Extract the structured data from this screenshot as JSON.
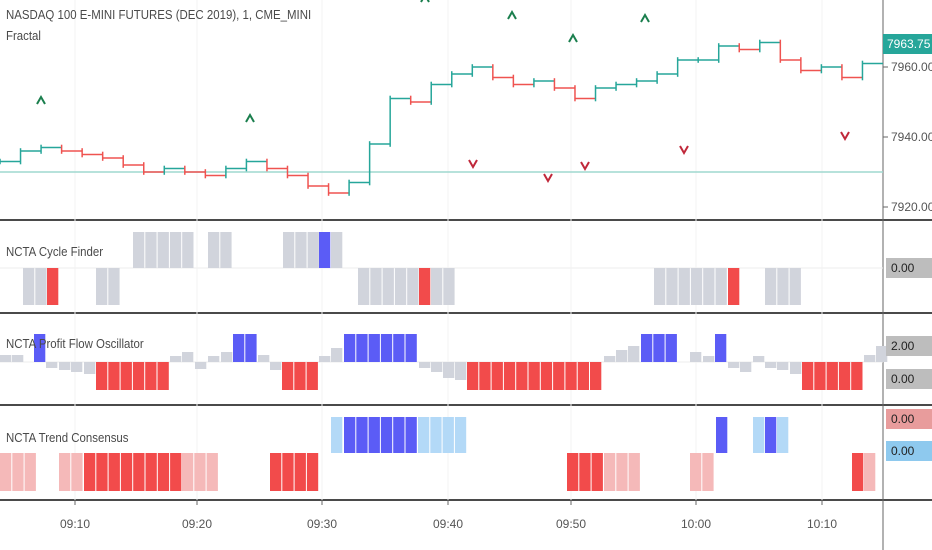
{
  "chart_title": "NASDAQ 100 E-MINI FUTURES (DEC 2019), 1, CME_MINI",
  "indicator_name": "Fractal",
  "colors": {
    "up": "#26a69a",
    "down": "#ef5350",
    "gray_block": "#d1d4dc",
    "blue_block": "#5b5cf6",
    "red_block": "#f24b4b",
    "light_red": "#f5b9b9",
    "light_blue": "#b3d9f7",
    "price_line": "#9fd8cf",
    "separator": "#4a4a4a"
  },
  "price_axis": {
    "ticks": [
      "7960.00",
      "7940.00",
      "7920.00"
    ],
    "current_price": "7963.75"
  },
  "time_axis": [
    "09:10",
    "09:20",
    "09:30",
    "09:40",
    "09:50",
    "10:00",
    "10:10"
  ],
  "panes": {
    "cycle_finder": {
      "label": "NCTA Cycle Finder",
      "value": "0.00"
    },
    "profit_flow": {
      "label": "NCTA Profit Flow Oscillator",
      "values": [
        "2.00",
        "0.00"
      ]
    },
    "trend_consensus": {
      "label": "NCTA Trend Consensus",
      "values": [
        "0.00",
        "0.00"
      ]
    }
  },
  "chart_data": {
    "type": "candlestick",
    "series_label": "NASDAQ 100 E-MINI FUTURES (DEC 2019), 1, CME_MINI",
    "approx_closes": [
      7933,
      7936,
      7937,
      7936,
      7935,
      7934,
      7932,
      7930,
      7931,
      7930,
      7929,
      7931,
      7933,
      7931,
      7929,
      7926,
      7924,
      7927,
      7938,
      7951,
      7950,
      7955,
      7958,
      7960,
      7957,
      7955,
      7956,
      7954,
      7951,
      7954,
      7955,
      7956,
      7958,
      7962,
      7962,
      7966,
      7965,
      7967,
      7962,
      7959,
      7960,
      7957,
      7961
    ],
    "ylim": [
      7918,
      7978
    ],
    "fractal_up_labels": [
      "^",
      "^",
      "^",
      "^",
      "^",
      "^"
    ],
    "fractal_down_labels": [
      "v",
      "v",
      "v",
      "v",
      "v"
    ]
  }
}
